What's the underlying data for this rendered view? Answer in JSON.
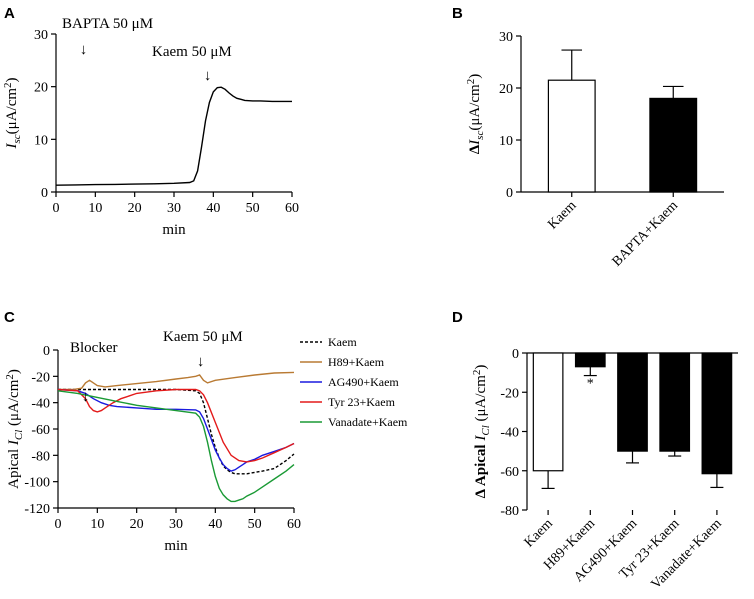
{
  "panels": [
    "A",
    "B",
    "C",
    "D"
  ],
  "chart_data": [
    {
      "id": "A",
      "type": "line",
      "xlabel": "min",
      "ylabel_main": "I",
      "ylabel_sub": "sc",
      "ylabel_unit": "(μA/cm",
      "ylabel_sup": "2",
      "ylabel_close": ")",
      "xlim": [
        0,
        60
      ],
      "ylim": [
        0,
        30
      ],
      "xticks": [
        0,
        10,
        20,
        30,
        40,
        50,
        60
      ],
      "yticks": [
        0,
        10,
        20,
        30
      ],
      "annotations": [
        {
          "text": "BAPTA 50 μM",
          "x": 7
        },
        {
          "text": "Kaem 50 μM",
          "x": 36
        }
      ],
      "series": [
        {
          "name": "Isc",
          "color": "#000000",
          "x": [
            0,
            5,
            10,
            15,
            20,
            25,
            30,
            34,
            35,
            36,
            37,
            38,
            39,
            40,
            41,
            42,
            43,
            44,
            45,
            46,
            47,
            48,
            50,
            52,
            55,
            58,
            60
          ],
          "y": [
            1.3,
            1.35,
            1.4,
            1.45,
            1.5,
            1.55,
            1.65,
            1.8,
            2.1,
            4.0,
            8.5,
            13.5,
            17.0,
            19.0,
            19.8,
            19.9,
            19.5,
            18.8,
            18.2,
            17.8,
            17.6,
            17.4,
            17.3,
            17.3,
            17.2,
            17.2,
            17.2
          ]
        }
      ]
    },
    {
      "id": "B",
      "type": "bar",
      "ylabel_main": "Δ",
      "ylabel_i": "I",
      "ylabel_sub": "sc",
      "ylabel_unit": "(μA/cm",
      "ylabel_sup": "2",
      "ylabel_close": ")",
      "ylim": [
        0,
        30
      ],
      "yticks": [
        0,
        10,
        20,
        30
      ],
      "categories": [
        "Kaem",
        "BAPTA+Kaem"
      ],
      "values": [
        21.5,
        18.0
      ],
      "errors": [
        5.8,
        2.3
      ],
      "fills": [
        "#ffffff",
        "#000000"
      ]
    },
    {
      "id": "C",
      "type": "line",
      "xlabel": "min",
      "ylabel_main": "Apical ",
      "ylabel_i": "I",
      "ylabel_sub": "Cl",
      "ylabel_unit": " (μA/cm",
      "ylabel_sup": "2",
      "ylabel_close": ")",
      "xlim": [
        0,
        60
      ],
      "ylim": [
        -120,
        0
      ],
      "xticks": [
        0,
        10,
        20,
        30,
        40,
        50,
        60
      ],
      "yticks": [
        0,
        -20,
        -40,
        -60,
        -80,
        -100,
        -120
      ],
      "annotations": [
        {
          "text": "Blocker",
          "x": 7
        },
        {
          "text": "Kaem 50 μM",
          "x": 36
        }
      ],
      "series": [
        {
          "name": "Kaem",
          "color": "#000000",
          "dash": true,
          "x": [
            0,
            5,
            10,
            15,
            20,
            25,
            30,
            35,
            36,
            37,
            38,
            39,
            40,
            41,
            42,
            43,
            44,
            45,
            46,
            47,
            48,
            50,
            52,
            55,
            58,
            60
          ],
          "y": [
            -30,
            -30,
            -30,
            -30,
            -30,
            -30,
            -30,
            -31,
            -33,
            -40,
            -52,
            -64,
            -74,
            -82,
            -88,
            -91,
            -93,
            -94,
            -94,
            -94,
            -94,
            -93,
            -92,
            -90,
            -84,
            -79
          ]
        },
        {
          "name": "H89+Kaem",
          "color": "#b97a33",
          "x": [
            0,
            4,
            6,
            7,
            8,
            9,
            10,
            12,
            15,
            20,
            25,
            30,
            33,
            35,
            36,
            37,
            38,
            40,
            45,
            50,
            55,
            60
          ],
          "y": [
            -30,
            -30,
            -29,
            -25,
            -23,
            -25,
            -27,
            -28,
            -27,
            -25.5,
            -24,
            -22,
            -21,
            -20,
            -19,
            -23,
            -25,
            -23,
            -21,
            -19,
            -17.5,
            -17
          ]
        },
        {
          "name": "AG490+Kaem",
          "color": "#1a1adf",
          "x": [
            0,
            5,
            7,
            9,
            11,
            13,
            15,
            20,
            25,
            30,
            35,
            36,
            37,
            38,
            39,
            40,
            41,
            42,
            43,
            44,
            45,
            46,
            47,
            48,
            50,
            52,
            55,
            58,
            60
          ],
          "y": [
            -30,
            -31,
            -33,
            -37,
            -40,
            -42,
            -43,
            -44,
            -45,
            -45,
            -45.5,
            -47,
            -52,
            -60,
            -68,
            -76,
            -82,
            -87,
            -90,
            -92,
            -91,
            -89,
            -87,
            -85,
            -83,
            -80,
            -77,
            -74,
            -71
          ]
        },
        {
          "name": "Tyr 23+Kaem",
          "color": "#e31a1a",
          "x": [
            0,
            5,
            7,
            8,
            9,
            10,
            11,
            12,
            14,
            16,
            18,
            20,
            25,
            30,
            35,
            36,
            37,
            38,
            40,
            42,
            44,
            46,
            48,
            50,
            52,
            55,
            58,
            60
          ],
          "y": [
            -30,
            -31,
            -37,
            -43,
            -46,
            -47,
            -46,
            -44,
            -40,
            -37,
            -35,
            -33,
            -31,
            -30,
            -30,
            -31,
            -34,
            -40,
            -55,
            -70,
            -80,
            -84,
            -85,
            -84,
            -82,
            -78,
            -74,
            -71
          ]
        },
        {
          "name": "Vanadate+Kaem",
          "color": "#1a9a35",
          "x": [
            0,
            5,
            10,
            15,
            20,
            25,
            30,
            35,
            36,
            37,
            38,
            39,
            40,
            41,
            42,
            43,
            44,
            45,
            46,
            47,
            48,
            50,
            52,
            55,
            58,
            60
          ],
          "y": [
            -31,
            -33,
            -36,
            -39,
            -42,
            -44,
            -46,
            -48,
            -51,
            -58,
            -70,
            -84,
            -96,
            -105,
            -110,
            -113,
            -115,
            -115,
            -114,
            -113,
            -111,
            -108,
            -104,
            -98,
            -92,
            -87
          ]
        }
      ]
    },
    {
      "id": "D",
      "type": "bar",
      "ylabel_main": "Δ Apical ",
      "ylabel_i": "I",
      "ylabel_sub": "Cl",
      "ylabel_unit": " (μA/cm",
      "ylabel_sup": "2",
      "ylabel_close": ")",
      "ylim": [
        -80,
        0
      ],
      "yticks": [
        0,
        -20,
        -40,
        -60,
        -80
      ],
      "categories": [
        "Kaem",
        "H89+Kaem",
        "AG490+Kaem",
        "Tyr 23+Kaem",
        "Vanadate+Kaem"
      ],
      "values": [
        -60,
        -7,
        -50,
        -50,
        -61.5
      ],
      "errors": [
        9,
        4.5,
        6,
        2.5,
        7
      ],
      "fills": [
        "#ffffff",
        "#000000",
        "#000000",
        "#000000",
        "#000000"
      ],
      "significance": [
        "",
        "*",
        "",
        "",
        ""
      ]
    }
  ]
}
